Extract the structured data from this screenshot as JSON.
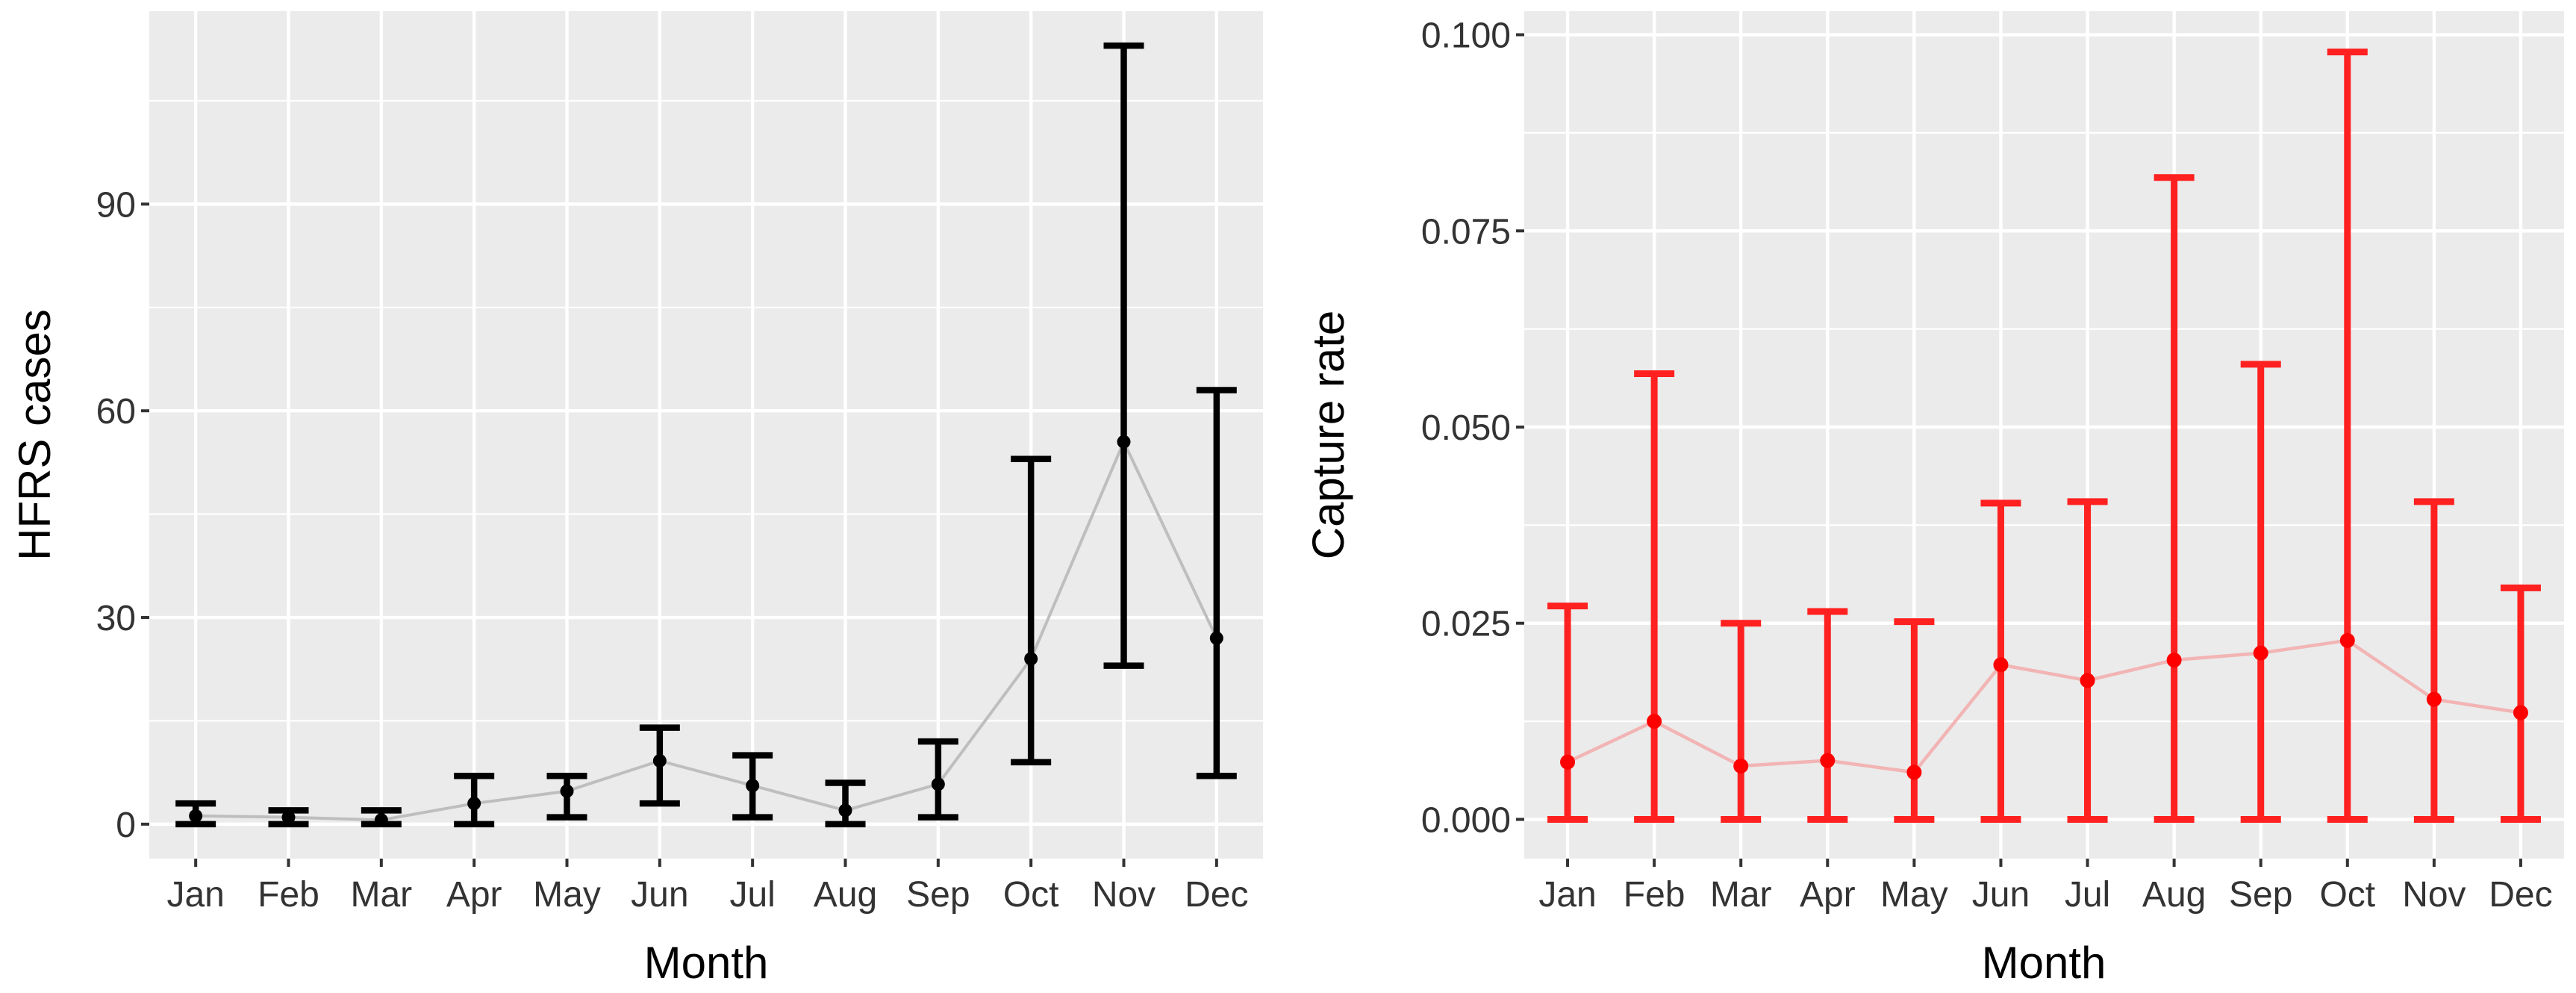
{
  "chart_data": [
    {
      "type": "line",
      "subtype": "point-errorbar",
      "xlabel": "Month",
      "ylabel": "HFRS cases",
      "categories": [
        "Jan",
        "Feb",
        "Mar",
        "Apr",
        "May",
        "Jun",
        "Jul",
        "Aug",
        "Sep",
        "Oct",
        "Nov",
        "Dec"
      ],
      "ylim": [
        -5,
        118
      ],
      "yticks": [
        0,
        30,
        60,
        90
      ],
      "ytick_labels": [
        "0",
        "30",
        "60",
        "90"
      ],
      "grid": true,
      "series": [
        {
          "values": [
            1.2,
            1.0,
            0.6,
            3.0,
            4.8,
            9.2,
            5.6,
            2.0,
            5.8,
            24.0,
            55.5,
            27.0
          ],
          "lower": [
            0,
            0,
            0,
            0,
            1,
            3,
            1,
            0,
            1,
            9,
            23,
            7
          ],
          "upper": [
            3,
            2,
            2,
            7,
            7,
            14,
            10,
            6,
            12,
            53,
            113,
            63
          ],
          "point_color": "#000000",
          "errorbar_color": "#000000",
          "line_color": "#BEBEBE"
        }
      ]
    },
    {
      "type": "line",
      "subtype": "point-errorbar",
      "xlabel": "Month",
      "ylabel": "Capture rate",
      "categories": [
        "Jan",
        "Feb",
        "Mar",
        "Apr",
        "May",
        "Jun",
        "Jul",
        "Aug",
        "Sep",
        "Oct",
        "Nov",
        "Dec"
      ],
      "ylim": [
        -0.005,
        0.103
      ],
      "yticks": [
        0.0,
        0.025,
        0.05,
        0.075,
        0.1
      ],
      "ytick_labels": [
        "0.000",
        "0.025",
        "0.050",
        "0.075",
        "0.100"
      ],
      "grid": true,
      "series": [
        {
          "values": [
            0.0073,
            0.0125,
            0.0068,
            0.0075,
            0.006,
            0.0197,
            0.0177,
            0.0203,
            0.0212,
            0.0228,
            0.0153,
            0.0136
          ],
          "lower": [
            0,
            0,
            0,
            0,
            0,
            0,
            0,
            0,
            0,
            0,
            0,
            0
          ],
          "upper": [
            0.0272,
            0.0568,
            0.025,
            0.0265,
            0.0252,
            0.0403,
            0.0405,
            0.0818,
            0.058,
            0.0978,
            0.0405,
            0.0295
          ],
          "point_color": "#FF0000",
          "errorbar_color": "#FF2020",
          "line_color": "#F2B4B4"
        }
      ]
    }
  ]
}
